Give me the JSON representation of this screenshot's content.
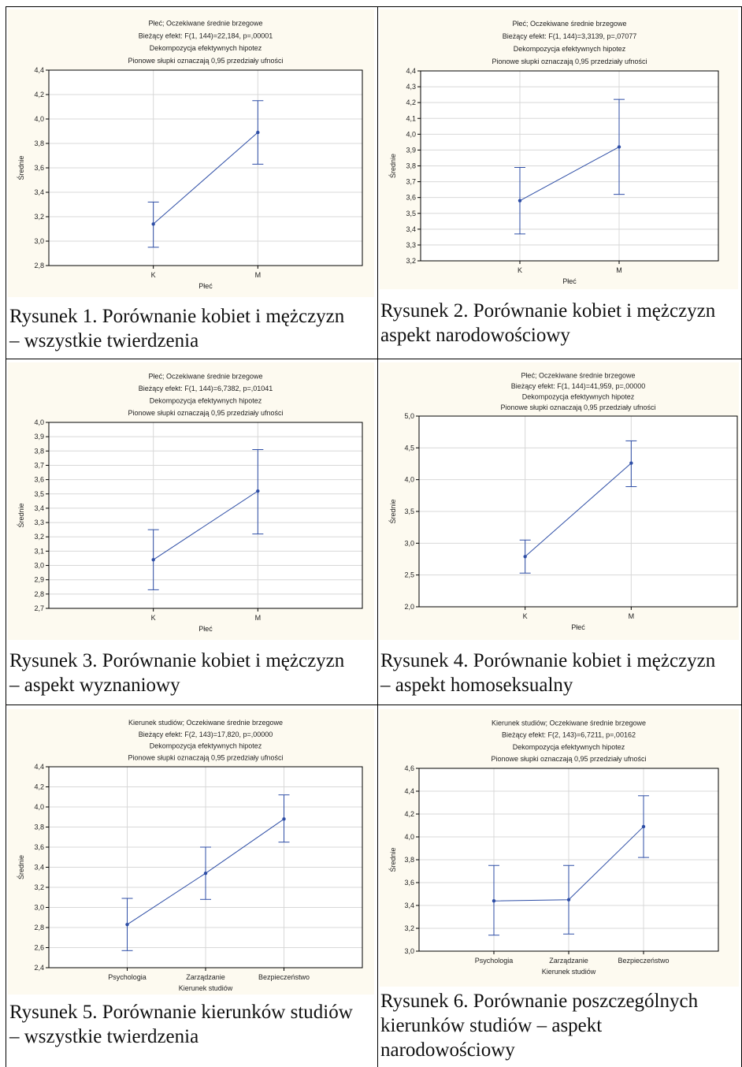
{
  "figures": [
    {
      "caption_lines": [
        "Rysunek 1. Porównanie kobiet i mężczyzn",
        "– wszystkie twierdzenia"
      ],
      "chart_data": {
        "type": "line",
        "title": [
          "Płeć; Oczekiwane średnie brzegowe",
          "Bieżący efekt: F(1, 144)=22,184, p=,00001",
          "Dekompozycja efektywnych hipotez",
          "Pionowe słupki oznaczają 0,95 przedziały ufności"
        ],
        "xlabel": "Płeć",
        "ylabel": "Średnie",
        "categories": [
          "K",
          "M"
        ],
        "values": [
          3.14,
          3.89
        ],
        "ci_low": [
          2.95,
          3.63
        ],
        "ci_high": [
          3.32,
          4.15
        ],
        "ylim": [
          2.8,
          4.4
        ],
        "yticks": [
          "2,8",
          "3,0",
          "3,2",
          "3,4",
          "3,6",
          "3,8",
          "4,0",
          "4,2",
          "4,4"
        ],
        "grid": true,
        "color": "#2e4ea6"
      }
    },
    {
      "caption_lines": [
        "Rysunek 2. Porównanie kobiet i mężczyzn",
        "aspekt narodowościowy"
      ],
      "chart_data": {
        "type": "line",
        "title": [
          "Płeć; Oczekiwane średnie brzegowe",
          "Bieżący efekt: F(1, 144)=3,3139, p=,07077",
          "Dekompozycja efektywnych hipotez",
          "Pionowe słupki oznaczają 0,95 przedziały ufności"
        ],
        "xlabel": "Płeć",
        "ylabel": "Średnie",
        "categories": [
          "K",
          "M"
        ],
        "values": [
          3.58,
          3.92
        ],
        "ci_low": [
          3.37,
          3.62
        ],
        "ci_high": [
          3.79,
          4.22
        ],
        "ylim": [
          3.2,
          4.4
        ],
        "yticks": [
          "3,2",
          "3,3",
          "3,4",
          "3,5",
          "3,6",
          "3,7",
          "3,8",
          "3,9",
          "4,0",
          "4,1",
          "4,2",
          "4,3",
          "4,4"
        ],
        "grid": true,
        "color": "#2e4ea6"
      }
    },
    {
      "caption_lines": [
        "Rysunek 3. Porównanie kobiet i mężczyzn",
        "– aspekt wyznaniowy"
      ],
      "chart_data": {
        "type": "line",
        "title": [
          "Płeć; Oczekiwane średnie brzegowe",
          "Bieżący efekt: F(1, 144)=6,7382, p=,01041",
          "Dekompozycja efektywnych hipotez",
          "Pionowe słupki oznaczają 0,95 przedziały ufności"
        ],
        "xlabel": "Płeć",
        "ylabel": "Średnie",
        "categories": [
          "K",
          "M"
        ],
        "values": [
          3.04,
          3.52
        ],
        "ci_low": [
          2.83,
          3.22
        ],
        "ci_high": [
          3.25,
          3.81
        ],
        "ylim": [
          2.7,
          4.0
        ],
        "yticks": [
          "2,7",
          "2,8",
          "2,9",
          "3,0",
          "3,1",
          "3,2",
          "3,3",
          "3,4",
          "3,5",
          "3,6",
          "3,7",
          "3,8",
          "3,9",
          "4,0"
        ],
        "grid": true,
        "color": "#2e4ea6"
      }
    },
    {
      "caption_lines": [
        "Rysunek 4. Porównanie kobiet i mężczyzn",
        "– aspekt homoseksualny"
      ],
      "chart_data": {
        "type": "line",
        "title": [
          "Płeć; Oczekiwane średnie brzegowe",
          "Bieżący efekt: F(1, 144)=41,959, p=,00000",
          "Dekompozycja efektywnych hipotez",
          "Pionowe słupki oznaczają 0,95 przedziały ufności"
        ],
        "xlabel": "Płeć",
        "ylabel": "Średnie",
        "categories": [
          "K",
          "M"
        ],
        "values": [
          2.79,
          4.26
        ],
        "ci_low": [
          2.53,
          3.89
        ],
        "ci_high": [
          3.05,
          4.61
        ],
        "ylim": [
          2.0,
          5.0
        ],
        "yticks": [
          "2,0",
          "2,5",
          "3,0",
          "3,5",
          "4,0",
          "4,5",
          "5,0"
        ],
        "grid": true,
        "color": "#2e4ea6"
      }
    },
    {
      "caption_lines": [
        "Rysunek 5. Porównanie kierunków studiów",
        "– wszystkie twierdzenia"
      ],
      "chart_data": {
        "type": "line",
        "title": [
          "Kierunek studiów; Oczekiwane średnie brzegowe",
          "Bieżący efekt: F(2, 143)=17,820, p=,00000",
          "Dekompozycja efektywnych hipotez",
          "Pionowe słupki oznaczają 0,95 przedziały ufności"
        ],
        "xlabel": "Kierunek studiów",
        "ylabel": "Średnie",
        "categories": [
          "Psychologia",
          "Zarządzanie",
          "Bezpieczeństwo"
        ],
        "values": [
          2.83,
          3.34,
          3.88
        ],
        "ci_low": [
          2.57,
          3.08,
          3.65
        ],
        "ci_high": [
          3.09,
          3.6,
          4.12
        ],
        "ylim": [
          2.4,
          4.4
        ],
        "yticks": [
          "2,4",
          "2,6",
          "2,8",
          "3,0",
          "3,2",
          "3,4",
          "3,6",
          "3,8",
          "4,0",
          "4,2",
          "4,4"
        ],
        "grid": true,
        "color": "#2e4ea6"
      }
    },
    {
      "caption_lines": [
        "Rysunek 6. Porównanie poszczególnych",
        "kierunków studiów – aspekt",
        "narodowościowy"
      ],
      "chart_data": {
        "type": "line",
        "title": [
          "Kierunek studiów; Oczekiwane średnie brzegowe",
          "Bieżący efekt: F(2, 143)=6,7211, p=,00162",
          "Dekompozycja efektywnych hipotez",
          "Pionowe słupki oznaczają 0,95 przedziały ufności"
        ],
        "xlabel": "Kierunek studiów",
        "ylabel": "Średnie",
        "categories": [
          "Psychologia",
          "Zarządzanie",
          "Bezpieczeństwo"
        ],
        "values": [
          3.44,
          3.45,
          4.09
        ],
        "ci_low": [
          3.14,
          3.15,
          3.82
        ],
        "ci_high": [
          3.75,
          3.75,
          4.36
        ],
        "ylim": [
          3.0,
          4.6
        ],
        "yticks": [
          "3,0",
          "3,2",
          "3,4",
          "3,6",
          "3,8",
          "4,0",
          "4,2",
          "4,4",
          "4,6"
        ],
        "grid": true,
        "color": "#2e4ea6"
      }
    }
  ]
}
